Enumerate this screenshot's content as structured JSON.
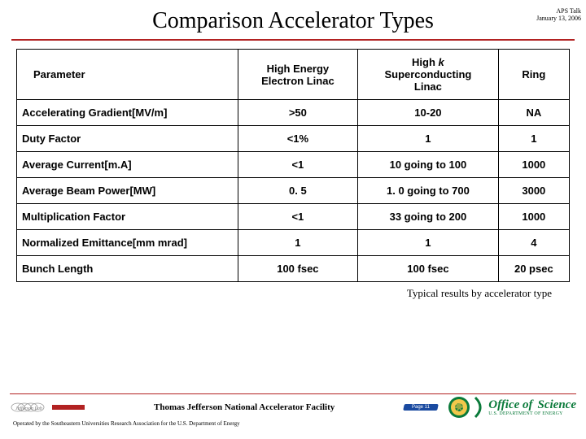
{
  "title": "Comparison Accelerator Types",
  "corner": {
    "line1": "APS Talk",
    "line2": "January 13, 2006"
  },
  "table": {
    "headers": {
      "param": "Parameter",
      "c1a": "High Energy",
      "c1b": "Electron Linac",
      "c2a": "High ",
      "c2k": "k",
      "c2b": "Superconducting",
      "c2c": "Linac",
      "c3": "Ring"
    },
    "rows": [
      {
        "param": "Accelerating Gradient[MV/m]",
        "c1": ">50",
        "c2": "10-20",
        "c3": "NA"
      },
      {
        "param": "Duty Factor",
        "c1": "<1%",
        "c2": "1",
        "c3": "1"
      },
      {
        "param": "Average Current[m.A]",
        "c1": "<1",
        "c2": "10 going to 100",
        "c3": "1000"
      },
      {
        "param": "Average Beam Power[MW]",
        "c1": "0. 5",
        "c2": "1. 0 going to 700",
        "c3": "3000"
      },
      {
        "param": "Multiplication Factor",
        "c1": "<1",
        "c2": "33 going to 200",
        "c3": "1000"
      },
      {
        "param": "Normalized Emittance[mm mrad]",
        "c1": "1",
        "c2": "1",
        "c3": "4"
      },
      {
        "param": "Bunch Length",
        "c1": "100 fsec",
        "c2": "100 fsec",
        "c3": "20 psec"
      }
    ]
  },
  "footnote": "Typical results by accelerator type",
  "footer": {
    "facility": "Thomas Jefferson National Accelerator Facility",
    "operated": "Operated by the Southeastern Universities Research Association for the U.S. Department of Energy",
    "page": "Page 11",
    "office": "Office of",
    "science": "Science",
    "doe": "U.S. DEPARTMENT OF ENERGY"
  },
  "colors": {
    "rule": "#b22222",
    "green": "#0a7a3a",
    "blue": "#1a4aa0"
  }
}
